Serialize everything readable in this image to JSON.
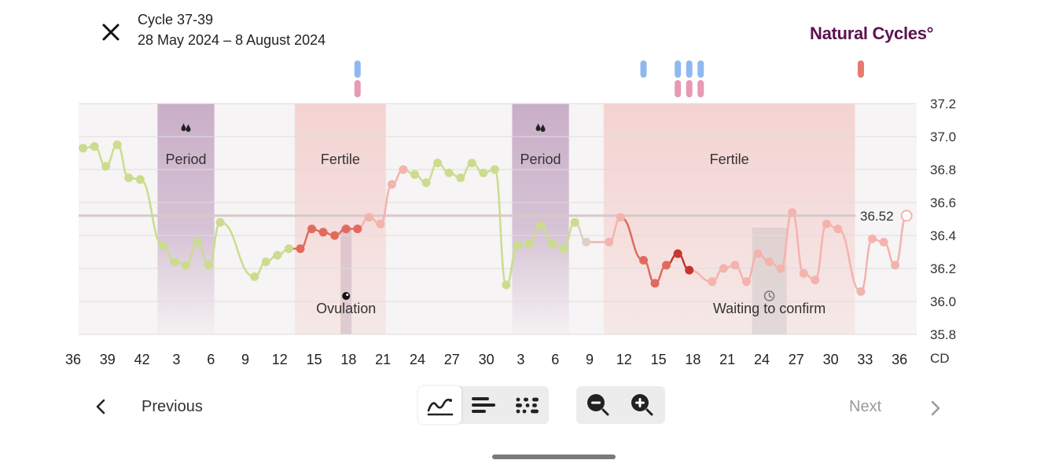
{
  "header": {
    "title": "Cycle 37-39",
    "date_range": "28 May 2024 – 8 August 2024",
    "logo": "Natural Cycles°"
  },
  "chart_data": {
    "type": "line",
    "ylim": [
      35.8,
      37.2
    ],
    "y_ticks": [
      "37.2",
      "37.0",
      "36.8",
      "36.6",
      "36.4",
      "36.2",
      "36.0",
      "35.8"
    ],
    "x_ticks": [
      "36",
      "39",
      "42",
      "3",
      "6",
      "9",
      "12",
      "15",
      "18",
      "21",
      "24",
      "27",
      "30",
      "3",
      "6",
      "9",
      "12",
      "15",
      "18",
      "21",
      "24",
      "27",
      "30",
      "33",
      "36"
    ],
    "x_axis_unit": "CD",
    "cover_line": {
      "value": 36.52,
      "label": "36.52"
    },
    "zones": [
      {
        "type": "period",
        "label": "Period",
        "from": 43,
        "to": 47,
        "color": "#c9aec8"
      },
      {
        "type": "fertile",
        "label": "Fertile",
        "from": 55,
        "to": 62,
        "color": "#f4d3d1"
      },
      {
        "type": "period",
        "label": "Period",
        "from": 74,
        "to": 78,
        "color": "#c9aec8"
      },
      {
        "type": "fertile",
        "label": "Fertile",
        "from": 82,
        "to": 103,
        "color": "#f4d3d1"
      }
    ],
    "annotations": [
      {
        "label": "Ovulation",
        "x": 59
      },
      {
        "label": "Waiting to confirm",
        "x": 96
      }
    ],
    "series": [
      {
        "points": [
          [
            36,
            36.93,
            "green"
          ],
          [
            37,
            36.94,
            "green"
          ],
          [
            38,
            36.82,
            "green"
          ],
          [
            39,
            36.95,
            "green"
          ],
          [
            40,
            36.75,
            "green"
          ],
          [
            41,
            36.74,
            "green"
          ],
          [
            43,
            36.34,
            "green"
          ],
          [
            44,
            36.24,
            "green"
          ],
          [
            45,
            36.22,
            "green"
          ],
          [
            46,
            36.36,
            "green"
          ],
          [
            47,
            36.22,
            "green"
          ],
          [
            48,
            36.48,
            "green"
          ],
          [
            51,
            36.15,
            "green"
          ],
          [
            52,
            36.24,
            "green"
          ],
          [
            53,
            36.28,
            "green"
          ],
          [
            54,
            36.32,
            "green"
          ],
          [
            55,
            36.32,
            "red"
          ],
          [
            56,
            36.44,
            "red"
          ],
          [
            57,
            36.42,
            "red"
          ],
          [
            58,
            36.4,
            "red"
          ],
          [
            59,
            36.44,
            "red"
          ],
          [
            60,
            36.44,
            "red"
          ],
          [
            61,
            36.51,
            "pink"
          ],
          [
            62,
            36.47,
            "pink"
          ],
          [
            63,
            36.71,
            "pink"
          ],
          [
            64,
            36.8,
            "pink"
          ],
          [
            65,
            36.77,
            "green"
          ],
          [
            66,
            36.72,
            "green"
          ],
          [
            67,
            36.84,
            "green"
          ],
          [
            68,
            36.78,
            "green"
          ],
          [
            69,
            36.75,
            "green"
          ],
          [
            70,
            36.84,
            "green"
          ],
          [
            71,
            36.78,
            "green"
          ],
          [
            72,
            36.8,
            "green"
          ],
          [
            73,
            36.1,
            "green"
          ],
          [
            74,
            36.34,
            "green"
          ],
          [
            75,
            36.35,
            "green"
          ],
          [
            76,
            36.46,
            "green"
          ],
          [
            77,
            36.35,
            "green"
          ],
          [
            78,
            36.32,
            "green"
          ],
          [
            79,
            36.48,
            "green"
          ],
          [
            80,
            36.36,
            "beige"
          ],
          [
            82,
            36.36,
            "pink"
          ],
          [
            83,
            36.51,
            "pink"
          ],
          [
            85,
            36.25,
            "red"
          ],
          [
            86,
            36.11,
            "red"
          ],
          [
            87,
            36.22,
            "red"
          ],
          [
            88,
            36.29,
            "darkred"
          ],
          [
            89,
            36.19,
            "darkred"
          ],
          [
            91,
            36.12,
            "pink"
          ],
          [
            92,
            36.2,
            "pink"
          ],
          [
            93,
            36.22,
            "pink"
          ],
          [
            94,
            36.12,
            "pink"
          ],
          [
            95,
            36.29,
            "pink"
          ],
          [
            96,
            36.24,
            "pink"
          ],
          [
            97,
            36.2,
            "pink"
          ],
          [
            98,
            36.54,
            "pink"
          ],
          [
            99,
            36.17,
            "pink"
          ],
          [
            100,
            36.13,
            "pink"
          ],
          [
            101,
            36.47,
            "pink"
          ],
          [
            102,
            36.44,
            "pink"
          ],
          [
            104,
            36.06,
            "pink"
          ],
          [
            105,
            36.38,
            "pink"
          ],
          [
            106,
            36.36,
            "pink"
          ],
          [
            107,
            36.22,
            "pink"
          ],
          [
            108,
            36.52,
            "open"
          ]
        ]
      }
    ],
    "markers": [
      {
        "x": 60,
        "colors": [
          "#8fb8f0",
          "#e89ab2"
        ]
      },
      {
        "x": 85,
        "colors": [
          "#8fb8f0"
        ]
      },
      {
        "x": 88,
        "colors": [
          "#8fb8f0",
          "#e89ab2"
        ]
      },
      {
        "x": 89,
        "colors": [
          "#8fb8f0",
          "#e89ab2"
        ]
      },
      {
        "x": 90,
        "colors": [
          "#8fb8f0",
          "#e89ab2"
        ]
      },
      {
        "x": 104,
        "colors": [
          "#e57a6e"
        ]
      }
    ]
  },
  "nav": {
    "previous": "Previous",
    "next": "Next"
  },
  "toolbar": {
    "view_modes": [
      {
        "icon": "line-chart-icon",
        "active": true
      },
      {
        "icon": "bar-view-icon",
        "active": false
      },
      {
        "icon": "dot-view-icon",
        "active": false
      }
    ],
    "zoom": [
      {
        "icon": "zoom-out-icon"
      },
      {
        "icon": "zoom-in-icon"
      }
    ]
  },
  "colors": {
    "brand": "#5b1350",
    "green": "#cbdc8e",
    "red": "#e16a5f",
    "darkred": "#c8352e",
    "pink": "#f4b3ad",
    "period_zone": "#c9aec8",
    "fertile_zone": "#f4d3d1"
  }
}
